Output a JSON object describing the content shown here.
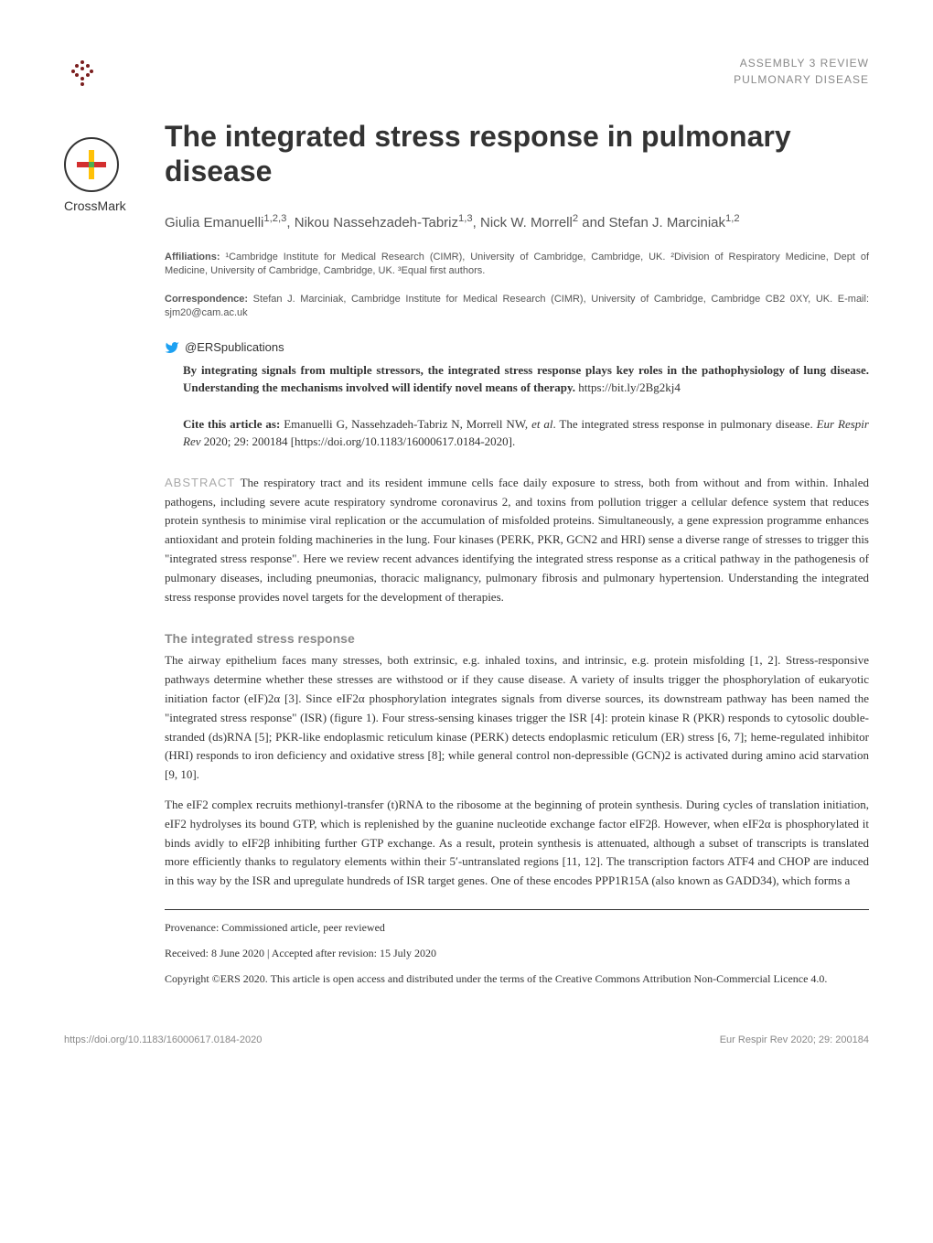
{
  "header": {
    "category_line1": "ASSEMBLY 3 REVIEW",
    "category_line2": "PULMONARY DISEASE",
    "crossmark_label": "CrossMark"
  },
  "title": "The integrated stress response in pulmonary disease",
  "authors_html": "Giulia Emanuelli<sup>1,2,3</sup>, Nikou Nassehzadeh-Tabriz<sup>1,3</sup>, Nick W. Morrell<sup>2</sup> and Stefan J. Marciniak<sup>1,2</sup>",
  "affiliations": {
    "label": "Affiliations:",
    "text": " ¹Cambridge Institute for Medical Research (CIMR), University of Cambridge, Cambridge, UK. ²Division of Respiratory Medicine, Dept of Medicine, University of Cambridge, Cambridge, UK. ³Equal first authors."
  },
  "correspondence": {
    "label": "Correspondence:",
    "text": " Stefan J. Marciniak, Cambridge Institute for Medical Research (CIMR), University of Cambridge, Cambridge CB2 0XY, UK. E-mail: sjm20@cam.ac.uk"
  },
  "twitter": {
    "handle": "@ERSpublications",
    "body_html": "<b>By integrating signals from multiple stressors, the integrated stress response plays key roles in the pathophysiology of lung disease. Understanding the mechanisms involved will identify novel means of therapy.</b> https://bit.ly/2Bg2kj4"
  },
  "cite": {
    "html": "<b>Cite this article as:</b> Emanuelli G, Nassehzadeh-Tabriz N, Morrell NW, <i>et al</i>. The integrated stress response in pulmonary disease. <i>Eur Respir Rev</i> 2020; 29: 200184 [https://doi.org/10.1183/16000617.0184-2020]."
  },
  "abstract": {
    "label": "ABSTRACT",
    "text": " The respiratory tract and its resident immune cells face daily exposure to stress, both from without and from within. Inhaled pathogens, including severe acute respiratory syndrome coronavirus 2, and toxins from pollution trigger a cellular defence system that reduces protein synthesis to minimise viral replication or the accumulation of misfolded proteins. Simultaneously, a gene expression programme enhances antioxidant and protein folding machineries in the lung. Four kinases (PERK, PKR, GCN2 and HRI) sense a diverse range of stresses to trigger this \"integrated stress response\". Here we review recent advances identifying the integrated stress response as a critical pathway in the pathogenesis of pulmonary diseases, including pneumonias, thoracic malignancy, pulmonary fibrosis and pulmonary hypertension. Understanding the integrated stress response provides novel targets for the development of therapies."
  },
  "section1_heading": "The integrated stress response",
  "para1": "The airway epithelium faces many stresses, both extrinsic, e.g. inhaled toxins, and intrinsic, e.g. protein misfolding [1, 2]. Stress-responsive pathways determine whether these stresses are withstood or if they cause disease. A variety of insults trigger the phosphorylation of eukaryotic initiation factor (eIF)2α [3]. Since eIF2α phosphorylation integrates signals from diverse sources, its downstream pathway has been named the \"integrated stress response\" (ISR) (figure 1). Four stress-sensing kinases trigger the ISR [4]: protein kinase R (PKR) responds to cytosolic double-stranded (ds)RNA [5]; PKR-like endoplasmic reticulum kinase (PERK) detects endoplasmic reticulum (ER) stress [6, 7]; heme-regulated inhibitor (HRI) responds to iron deficiency and oxidative stress [8]; while general control non-depressible (GCN)2 is activated during amino acid starvation [9, 10].",
  "para2": "The eIF2 complex recruits methionyl-transfer (t)RNA to the ribosome at the beginning of protein synthesis. During cycles of translation initiation, eIF2 hydrolyses its bound GTP, which is replenished by the guanine nucleotide exchange factor eIF2β. However, when eIF2α is phosphorylated it binds avidly to eIF2β inhibiting further GTP exchange. As a result, protein synthesis is attenuated, although a subset of transcripts is translated more efficiently thanks to regulatory elements within their 5′-untranslated regions [11, 12]. The transcription factors ATF4 and CHOP are induced in this way by the ISR and upregulate hundreds of ISR target genes. One of these encodes PPP1R15A (also known as GADD34), which forms a",
  "footer": {
    "provenance": "Provenance: Commissioned article, peer reviewed",
    "dates": "Received: 8 June 2020 | Accepted after revision: 15 July 2020",
    "copyright": "Copyright ©ERS 2020. This article is open access and distributed under the terms of the Creative Commons Attribution Non-Commercial Licence 4.0."
  },
  "page_footer": {
    "doi": "https://doi.org/10.1183/16000617.0184-2020",
    "citation": "Eur Respir Rev 2020; 29: 200184"
  },
  "colors": {
    "logo_color": "#7a1e1e",
    "text_grey": "#888888",
    "body_color": "#333333"
  }
}
